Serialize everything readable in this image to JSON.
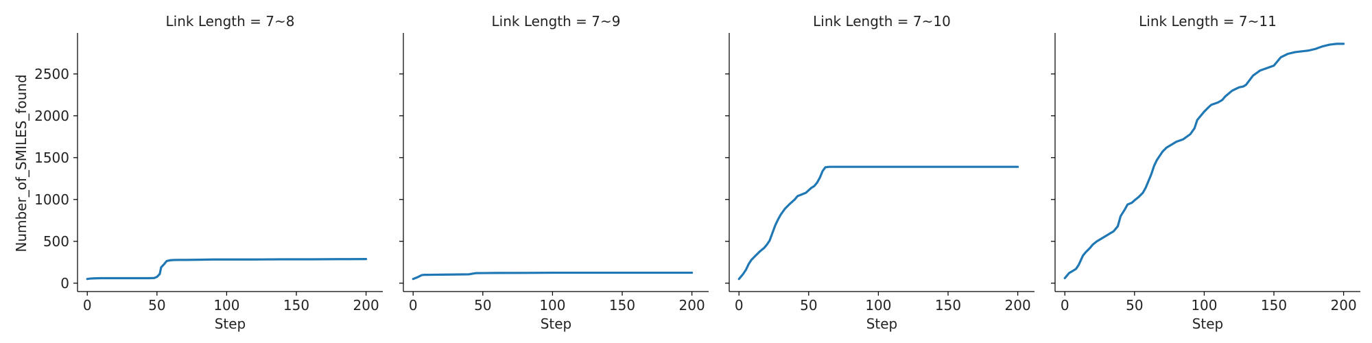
{
  "chart_data": {
    "type": "line",
    "xlabel": "Step",
    "ylabel": "Number_of_SMILES_found",
    "xlim": [
      -7,
      212
    ],
    "ylim": [
      -100,
      2990
    ],
    "xticks": [
      0,
      50,
      100,
      150,
      200
    ],
    "yticks": [
      0,
      500,
      1000,
      1500,
      2000,
      2500
    ],
    "line_color": "#1f77b4",
    "shared_y": true,
    "grid": false,
    "legend": "none",
    "panels": [
      {
        "title": "Link Length = 7~8",
        "series": [
          {
            "x": [
              0,
              2,
              5,
              10,
              20,
              30,
              40,
              45,
              48,
              50,
              52,
              53,
              55,
              57,
              60,
              62,
              65,
              70,
              80,
              90,
              100,
              120,
              140,
              160,
              180,
              200
            ],
            "y": [
              50,
              55,
              58,
              60,
              60,
              60,
              60,
              60,
              62,
              75,
              110,
              190,
              225,
              265,
              275,
              277,
              278,
              278,
              280,
              283,
              283,
              283,
              285,
              285,
              287,
              288
            ]
          }
        ]
      },
      {
        "title": "Link Length = 7~9",
        "series": [
          {
            "x": [
              0,
              3,
              6,
              8,
              10,
              20,
              30,
              40,
              43,
              45,
              50,
              60,
              80,
              100,
              150,
              200
            ],
            "y": [
              50,
              70,
              95,
              100,
              100,
              102,
              104,
              106,
              115,
              120,
              121,
              122,
              123,
              125,
              125,
              125
            ]
          }
        ]
      },
      {
        "title": "Link Length = 7~10",
        "series": [
          {
            "x": [
              0,
              3,
              5,
              7,
              9,
              12,
              15,
              18,
              20,
              22,
              24,
              26,
              28,
              30,
              33,
              36,
              40,
              42,
              45,
              48,
              50,
              52,
              54,
              56,
              58,
              60,
              62,
              65,
              70,
              80,
              100,
              150,
              200
            ],
            "y": [
              50,
              110,
              160,
              230,
              280,
              330,
              380,
              420,
              460,
              510,
              600,
              690,
              760,
              820,
              890,
              940,
              1000,
              1040,
              1060,
              1080,
              1110,
              1140,
              1160,
              1200,
              1260,
              1340,
              1385,
              1390,
              1390,
              1390,
              1390,
              1390,
              1390
            ]
          }
        ]
      },
      {
        "title": "Link Length = 7~11",
        "series": [
          {
            "x": [
              0,
              3,
              5,
              8,
              10,
              13,
              15,
              18,
              20,
              23,
              25,
              30,
              35,
              38,
              40,
              43,
              45,
              48,
              50,
              53,
              56,
              58,
              60,
              62,
              64,
              66,
              68,
              70,
              73,
              75,
              80,
              85,
              90,
              93,
              95,
              100,
              103,
              105,
              110,
              113,
              115,
              120,
              125,
              128,
              130,
              135,
              140,
              145,
              150,
              153,
              155,
              160,
              165,
              170,
              175,
              180,
              185,
              190,
              195,
              200
            ],
            "y": [
              60,
              120,
              140,
              170,
              220,
              330,
              370,
              420,
              460,
              500,
              520,
              570,
              620,
              680,
              800,
              880,
              940,
              960,
              990,
              1030,
              1080,
              1140,
              1220,
              1300,
              1400,
              1470,
              1520,
              1570,
              1620,
              1640,
              1690,
              1720,
              1780,
              1850,
              1950,
              2050,
              2100,
              2130,
              2160,
              2190,
              2230,
              2300,
              2340,
              2350,
              2370,
              2480,
              2540,
              2570,
              2600,
              2660,
              2700,
              2740,
              2760,
              2770,
              2780,
              2800,
              2830,
              2850,
              2860,
              2860
            ]
          }
        ]
      }
    ]
  }
}
